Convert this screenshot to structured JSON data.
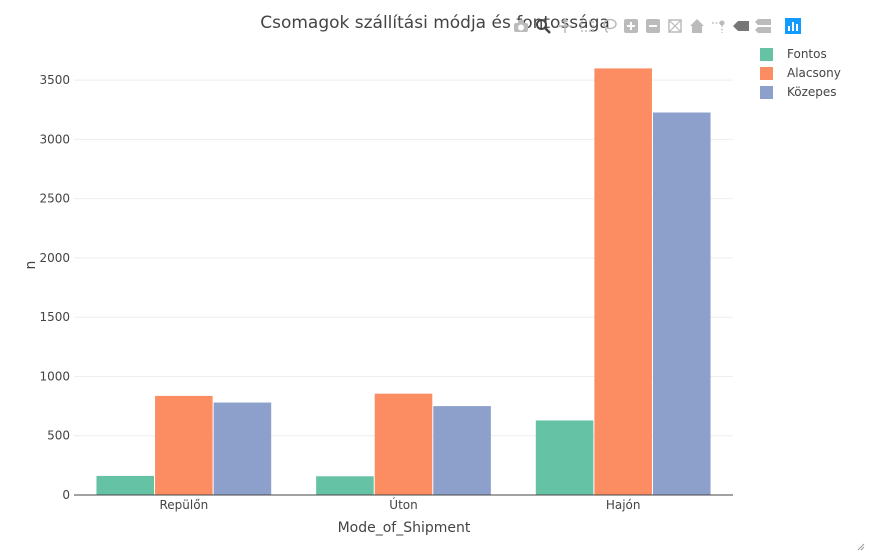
{
  "chart_data": {
    "type": "bar",
    "title": "Csomagok szállítási módja és fontossága",
    "xlabel": "Mode_of_Shipment",
    "ylabel": "n",
    "categories": [
      "Repülőn",
      "Úton",
      "Hajón"
    ],
    "series": [
      {
        "name": "Fontos",
        "color": "#66c2a5",
        "values": [
          161,
          158,
          629
        ]
      },
      {
        "name": "Alacsony",
        "color": "#fc8d62",
        "values": [
          836,
          855,
          3599
        ]
      },
      {
        "name": "Közepes",
        "color": "#8da0cb",
        "values": [
          780,
          750,
          3227
        ]
      }
    ],
    "yticks": [
      0,
      500,
      1000,
      1500,
      2000,
      2500,
      3000,
      3500
    ],
    "ylim": [
      0,
      3788
    ],
    "grid": true,
    "legend_position": "top-right"
  },
  "modebar": {
    "icons": [
      "camera-icon",
      "zoom-icon",
      "pan-icon",
      "box-select-icon",
      "lasso-icon",
      "zoom-in-icon",
      "zoom-out-icon",
      "autoscale-icon",
      "reset-axes-icon",
      "spike-lines-icon",
      "hover-closest-icon",
      "hover-compare-icon",
      "plotly-logo-icon"
    ]
  }
}
